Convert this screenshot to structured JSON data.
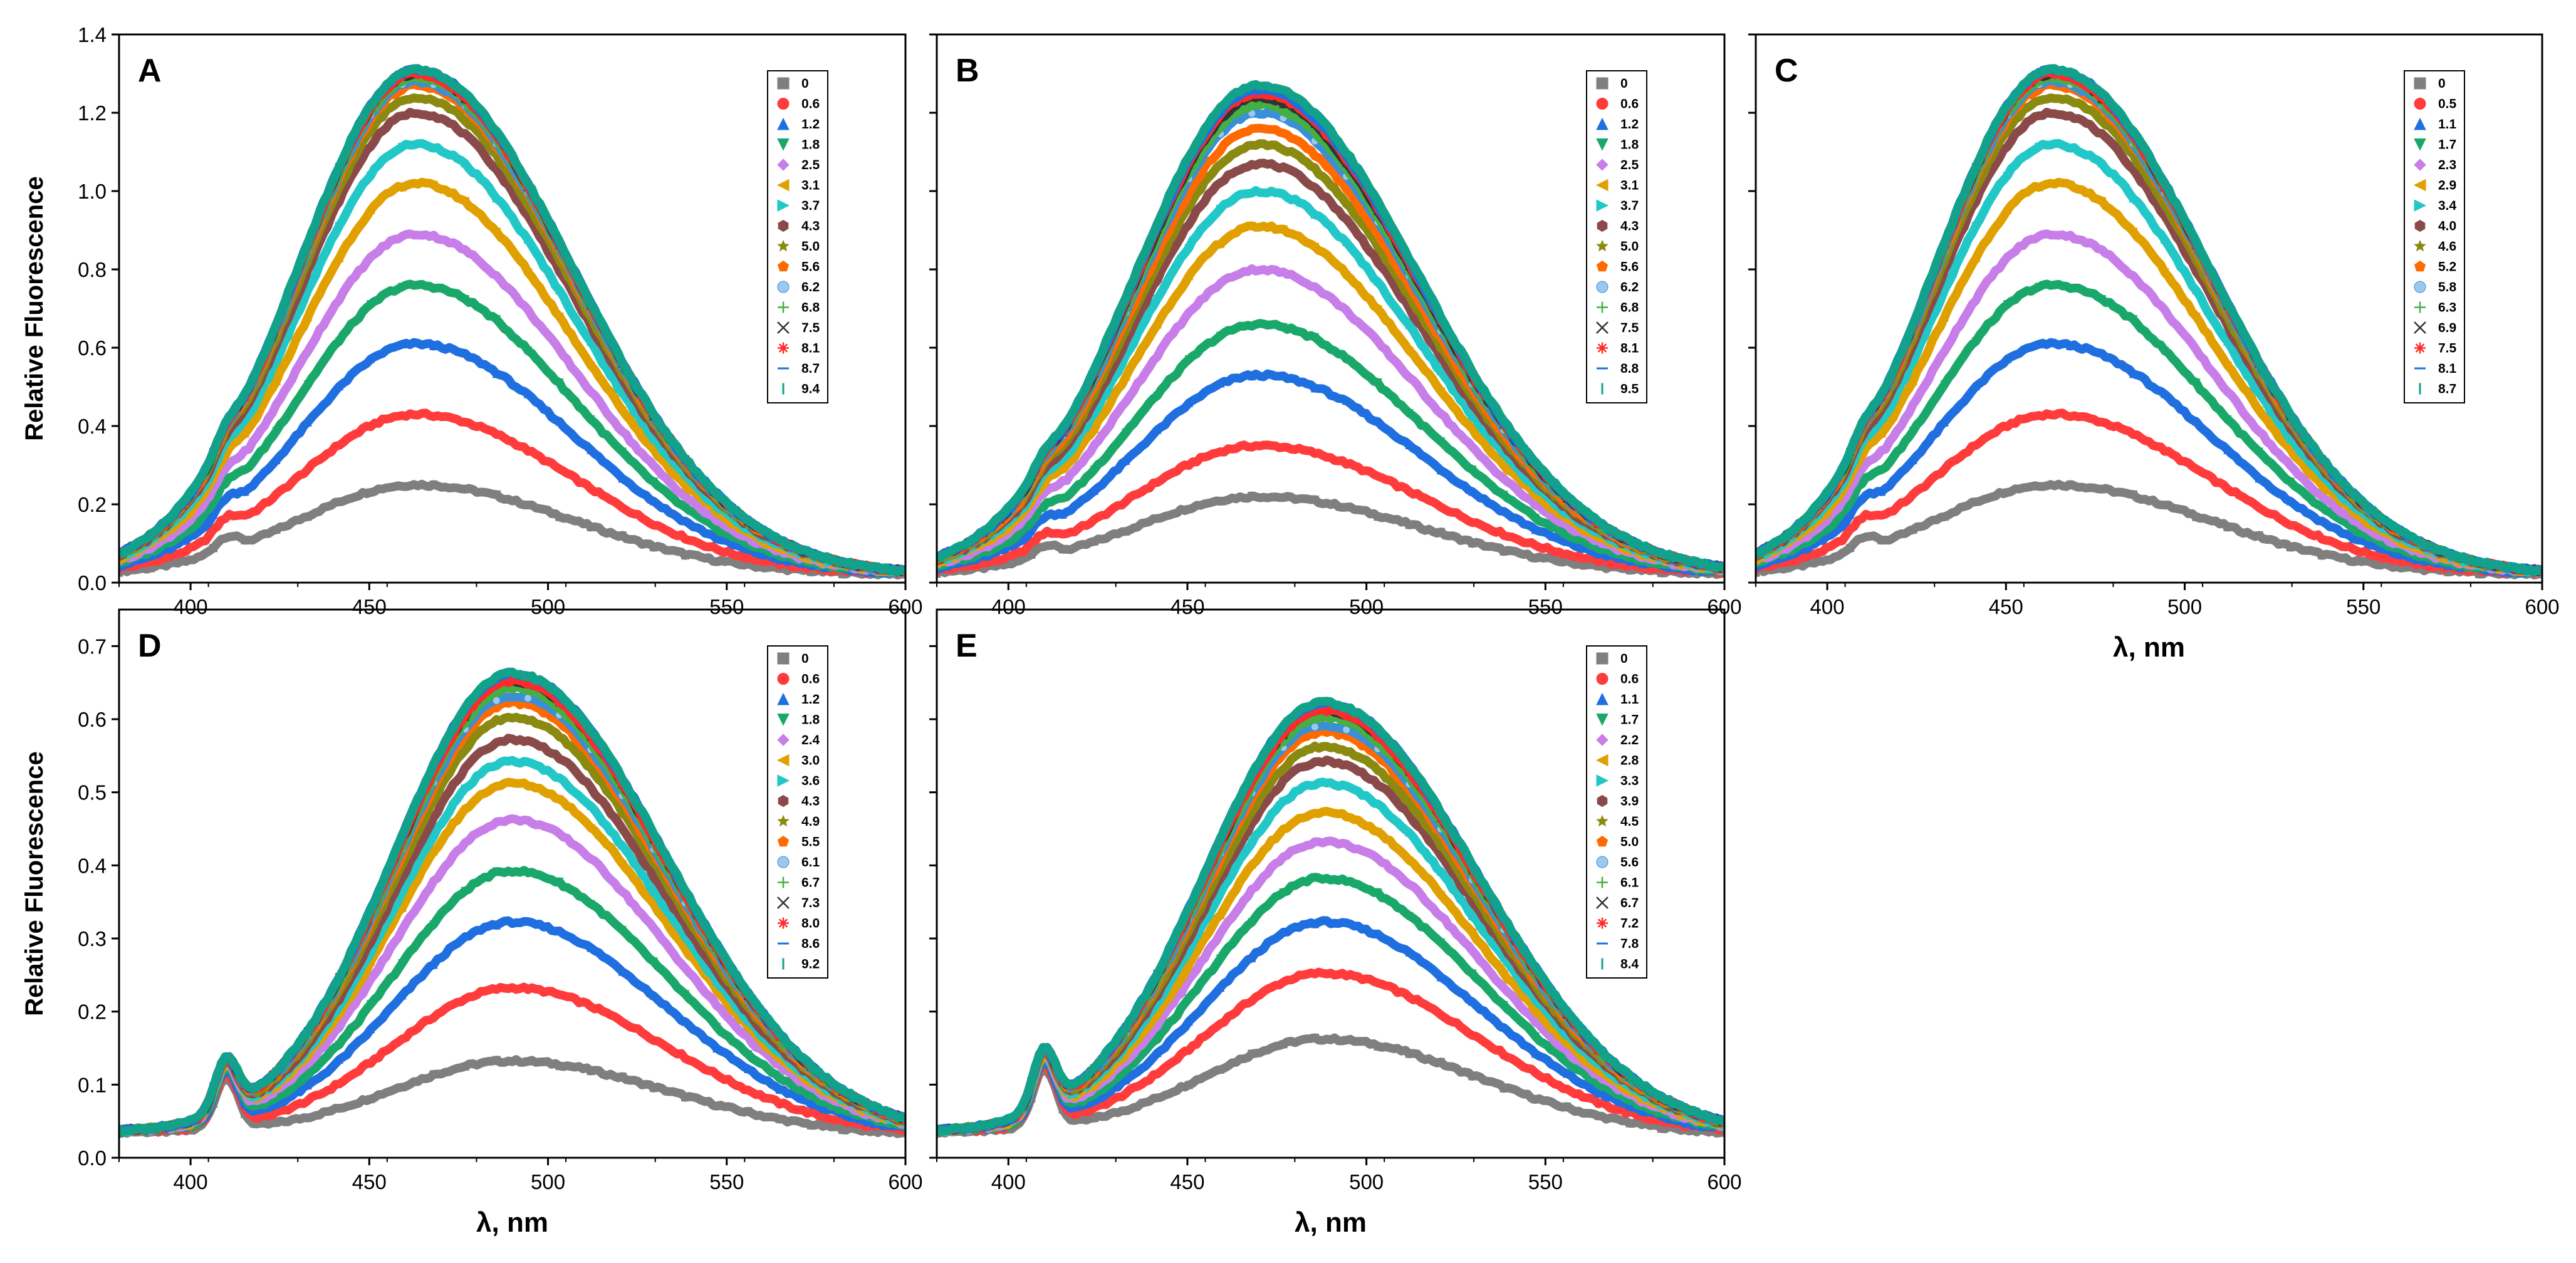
{
  "figure": {
    "y_axis_label": "Relative Fluorescence",
    "x_axis_label": "λ, nm"
  },
  "colors": [
    "#7f7f7f",
    "#ff3b3b",
    "#1f6fe0",
    "#1aa86a",
    "#c77ee8",
    "#e0a000",
    "#22c7c7",
    "#8b4a4a",
    "#8a8a10",
    "#ff6a00",
    "#3a8fd6",
    "#44b044",
    "#333333",
    "#ff2a2a",
    "#1f6fe0",
    "#12a18a"
  ],
  "marker_icons": [
    "square-icon",
    "circle-icon",
    "triangle-up-icon",
    "triangle-down-icon",
    "diamond-icon",
    "triangle-left-icon",
    "triangle-right-icon",
    "hexagon-icon",
    "star-icon",
    "pentagon-icon",
    "sphere-icon",
    "plus-icon",
    "cross-icon",
    "asterisk-icon",
    "dash-icon",
    "vertical-bar-icon"
  ],
  "chart_data": [
    {
      "type": "line",
      "panel_label": "A",
      "xlabel": "",
      "ylabel": "Relative Fluorescence",
      "xlim": [
        380,
        600
      ],
      "ylim": [
        0,
        1.4
      ],
      "x_ticks": [
        "400",
        "450",
        "500",
        "550",
        "600"
      ],
      "y_ticks": [
        "0.0",
        "0.2",
        "0.4",
        "0.6",
        "0.8",
        "1.0",
        "1.2",
        "1.4"
      ],
      "x_tick_values": [
        400,
        450,
        500,
        550,
        600
      ],
      "y_tick_values": [
        0,
        0.2,
        0.4,
        0.6,
        0.8,
        1.0,
        1.2,
        1.4
      ],
      "peak_wavelength": 463,
      "width_left": 33,
      "width_right": 44,
      "shoulder_wavelength": 410,
      "shoulder_height": 0.035,
      "baseline_left": 0.02,
      "baseline_right": 0.02,
      "legend_position": "top-right",
      "legend": [
        "0",
        "0.6",
        "1.2",
        "1.8",
        "2.5",
        "3.1",
        "3.7",
        "4.3",
        "5.0",
        "5.6",
        "6.2",
        "6.8",
        "7.5",
        "8.1",
        "8.7",
        "9.4"
      ],
      "peak_values": [
        0.23,
        0.41,
        0.59,
        0.74,
        0.87,
        1.0,
        1.1,
        1.18,
        1.22,
        1.25,
        1.26,
        1.27,
        1.28,
        1.28,
        1.29,
        1.29
      ]
    },
    {
      "type": "line",
      "panel_label": "B",
      "xlabel": "",
      "ylabel": "",
      "xlim": [
        380,
        600
      ],
      "ylim": [
        0,
        1.4
      ],
      "x_ticks": [
        "400",
        "450",
        "500",
        "550",
        "600"
      ],
      "y_ticks": [],
      "x_tick_values": [
        400,
        450,
        500,
        550,
        600
      ],
      "y_tick_values": [
        0,
        0.2,
        0.4,
        0.6,
        0.8,
        1.0,
        1.2,
        1.4
      ],
      "peak_wavelength": 470,
      "width_left": 35,
      "width_right": 45,
      "shoulder_wavelength": 410,
      "shoulder_height": 0.03,
      "baseline_left": 0.02,
      "baseline_right": 0.02,
      "legend_position": "top-right",
      "legend": [
        "0",
        "0.6",
        "1.2",
        "1.8",
        "2.5",
        "3.1",
        "3.7",
        "4.3",
        "5.0",
        "5.6",
        "6.2",
        "6.8",
        "7.5",
        "8.1",
        "8.8",
        "9.5"
      ],
      "peak_values": [
        0.2,
        0.33,
        0.51,
        0.64,
        0.78,
        0.89,
        0.98,
        1.05,
        1.1,
        1.14,
        1.18,
        1.2,
        1.22,
        1.23,
        1.24,
        1.25
      ]
    },
    {
      "type": "line",
      "panel_label": "C",
      "xlabel": "λ, nm",
      "ylabel": "",
      "xlim": [
        380,
        600
      ],
      "ylim": [
        0,
        1.4
      ],
      "x_ticks": [
        "400",
        "450",
        "500",
        "550",
        "600"
      ],
      "y_ticks": [],
      "x_tick_values": [
        400,
        450,
        500,
        550,
        600
      ],
      "y_tick_values": [
        0,
        0.2,
        0.4,
        0.6,
        0.8,
        1.0,
        1.2,
        1.4
      ],
      "peak_wavelength": 463,
      "width_left": 33,
      "width_right": 44,
      "shoulder_wavelength": 410,
      "shoulder_height": 0.035,
      "baseline_left": 0.02,
      "baseline_right": 0.02,
      "legend_position": "top-right",
      "legend": [
        "0",
        "0.5",
        "1.1",
        "1.7",
        "2.3",
        "2.9",
        "3.4",
        "4.0",
        "4.6",
        "5.2",
        "5.8",
        "6.3",
        "6.9",
        "7.5",
        "8.1",
        "8.7"
      ],
      "peak_values": [
        0.23,
        0.41,
        0.59,
        0.74,
        0.87,
        1.0,
        1.1,
        1.18,
        1.22,
        1.25,
        1.26,
        1.27,
        1.28,
        1.28,
        1.29,
        1.29
      ]
    },
    {
      "type": "line",
      "panel_label": "D",
      "xlabel": "λ, nm",
      "ylabel": "Relative Fluorescence",
      "xlim": [
        380,
        600
      ],
      "ylim": [
        0,
        0.75
      ],
      "x_ticks": [
        "400",
        "450",
        "500",
        "550",
        "600"
      ],
      "y_ticks": [
        "0.0",
        "0.1",
        "0.2",
        "0.3",
        "0.4",
        "0.5",
        "0.6",
        "0.7"
      ],
      "x_tick_values": [
        400,
        450,
        500,
        550,
        600
      ],
      "y_tick_values": [
        0,
        0.1,
        0.2,
        0.3,
        0.4,
        0.5,
        0.6,
        0.7
      ],
      "peak_wavelength": 490,
      "width_left": 33,
      "width_right": 43,
      "shoulder_wavelength": 410,
      "shoulder_height": 0.07,
      "baseline_left": 0.035,
      "baseline_right": 0.03,
      "legend_position": "top-right",
      "legend": [
        "0",
        "0.6",
        "1.2",
        "1.8",
        "2.4",
        "3.0",
        "3.6",
        "4.3",
        "4.9",
        "5.5",
        "6.1",
        "6.7",
        "7.3",
        "8.0",
        "8.6",
        "9.2"
      ],
      "peak_values": [
        0.1,
        0.2,
        0.29,
        0.36,
        0.43,
        0.48,
        0.51,
        0.54,
        0.57,
        0.59,
        0.6,
        0.61,
        0.62,
        0.62,
        0.63,
        0.63
      ]
    },
    {
      "type": "line",
      "panel_label": "E",
      "xlabel": "λ, nm",
      "ylabel": "",
      "xlim": [
        380,
        600
      ],
      "ylim": [
        0,
        0.75
      ],
      "x_ticks": [
        "400",
        "450",
        "500",
        "550",
        "600"
      ],
      "y_ticks": [],
      "x_tick_values": [
        400,
        450,
        500,
        550,
        600
      ],
      "y_tick_values": [
        0,
        0.1,
        0.2,
        0.3,
        0.4,
        0.5,
        0.6,
        0.7
      ],
      "peak_wavelength": 488,
      "width_left": 33,
      "width_right": 43,
      "shoulder_wavelength": 410,
      "shoulder_height": 0.08,
      "baseline_left": 0.035,
      "baseline_right": 0.03,
      "legend_position": "top-right",
      "legend": [
        "0",
        "0.6",
        "1.1",
        "1.7",
        "2.2",
        "2.8",
        "3.3",
        "3.9",
        "4.5",
        "5.0",
        "5.6",
        "6.1",
        "6.7",
        "7.2",
        "7.8",
        "8.4"
      ],
      "peak_values": [
        0.13,
        0.22,
        0.29,
        0.35,
        0.4,
        0.44,
        0.48,
        0.51,
        0.53,
        0.55,
        0.56,
        0.57,
        0.58,
        0.58,
        0.59,
        0.59
      ]
    }
  ]
}
